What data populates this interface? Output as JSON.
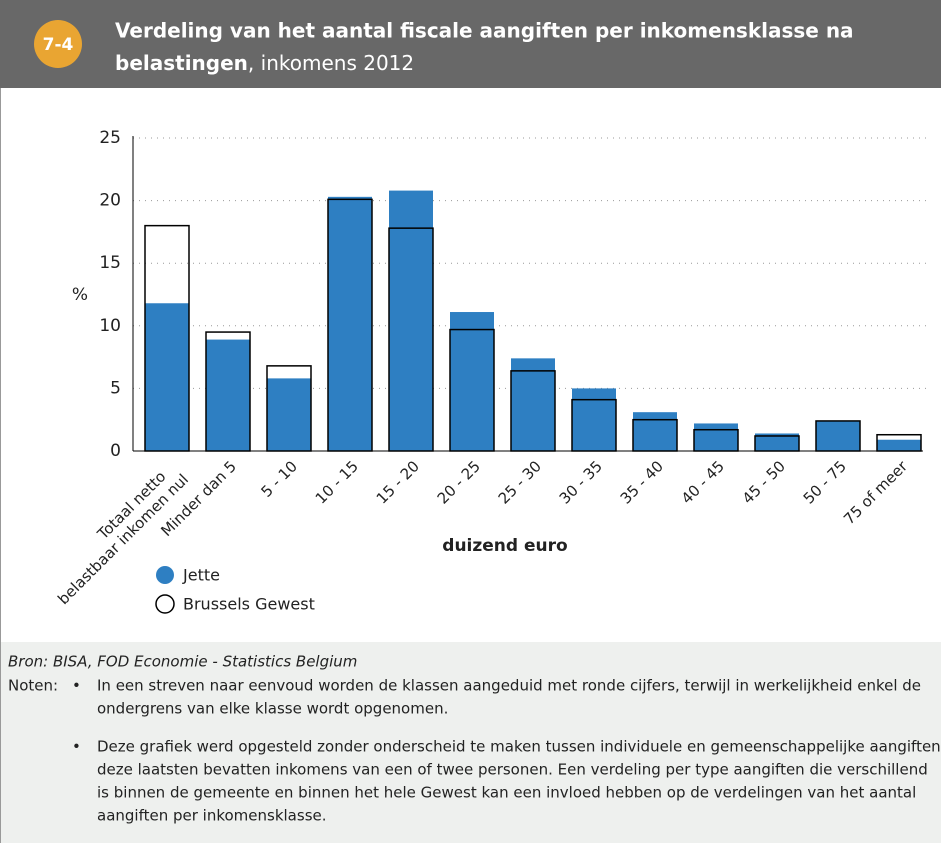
{
  "badge": "7-4",
  "chart_data": {
    "type": "bar",
    "title_lines": [
      "Verdeling van het aantal fiscale aangiften per inkomensklasse na",
      "belastingen"
    ],
    "subtitle": ", inkomens 2012",
    "ylabel": "%",
    "xlabel": "duizend euro",
    "categories": [
      [
        "Totaal netto",
        "belastbaar inkomen nul"
      ],
      "Minder dan 5",
      "5 - 10",
      "10 - 15",
      "15 - 20",
      "20 - 25",
      "25 - 30",
      "30 - 35",
      "35 - 40",
      "40 - 45",
      "45 - 50",
      "50 - 75",
      "75 of meer"
    ],
    "series": [
      {
        "name": "Jette",
        "color": "#2e7fc2",
        "values": [
          11.8,
          8.9,
          5.8,
          20.3,
          20.8,
          11.1,
          7.4,
          5.0,
          3.1,
          2.2,
          1.4,
          2.4,
          0.9
        ]
      },
      {
        "name": "Brussels Gewest",
        "color": "#000000",
        "values": [
          18.0,
          9.5,
          6.8,
          20.1,
          17.8,
          9.7,
          6.4,
          4.1,
          2.5,
          1.7,
          1.2,
          2.4,
          1.3
        ]
      }
    ],
    "ylim": [
      0,
      25
    ],
    "yticks": [
      0,
      5,
      10,
      15,
      20,
      25
    ],
    "grid": true
  },
  "footer": {
    "source": "Bron: BISA, FOD Economie - Statistics Belgium",
    "notes_label": "Noten:",
    "notes": [
      [
        "In een streven naar eenvoud worden de klassen aangeduid met ronde cijfers, terwijl in werkelijkheid enkel de",
        "ondergrens van elke klasse wordt opgenomen."
      ],
      [
        "Deze grafiek werd opgesteld zonder onderscheid te maken tussen individuele en gemeenschappelijke aangiften,",
        "deze laatsten bevatten inkomens van een of twee personen. Een verdeling per type aangiften die verschillend",
        "is binnen de gemeente en binnen het hele Gewest kan een invloed hebben op de verdelingen van het aantal",
        "aangiften per inkomensklasse."
      ]
    ]
  }
}
